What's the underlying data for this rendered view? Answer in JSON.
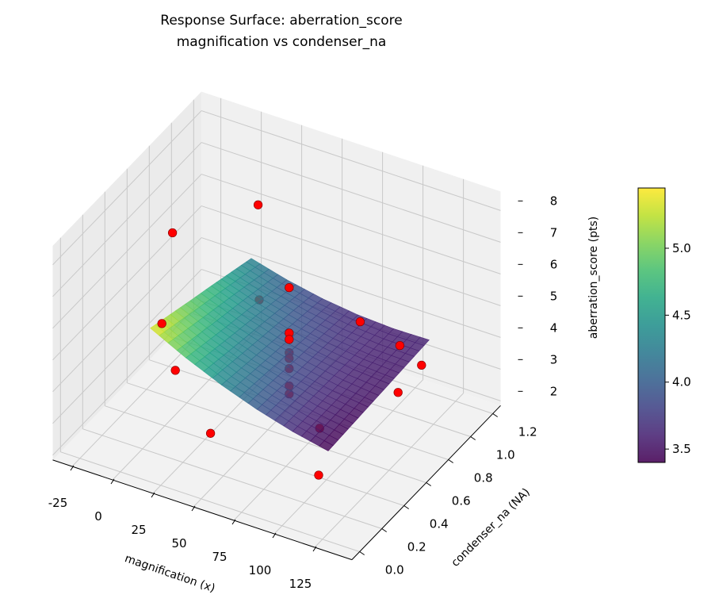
{
  "chart_data": {
    "type": "surface3d",
    "title": "Response Surface: aberration_score",
    "subtitle": "magnification vs condenser_na",
    "xlabel": "magnification (x)",
    "ylabel": "condenser_na (NA)",
    "zlabel": "aberration_score (pts)",
    "xlim": [
      -37,
      148
    ],
    "ylim": [
      -0.07,
      1.27
    ],
    "zlim": [
      1.85,
      8.6
    ],
    "xticks": [
      "-25",
      "0",
      "25",
      "50",
      "75",
      "100",
      "125"
    ],
    "yticks": [
      "0.0",
      "0.2",
      "0.4",
      "0.6",
      "0.8",
      "1.0",
      "1.2"
    ],
    "zticks": [
      "2",
      "3",
      "4",
      "5",
      "6",
      "7",
      "8"
    ],
    "grid": true,
    "colormap": "viridis",
    "colorbar": {
      "min": 3.4,
      "max": 5.45,
      "ticks": [
        "3.5",
        "4.0",
        "4.5",
        "5.0"
      ]
    },
    "scatter_color": "#ff0000",
    "surface": {
      "x": [
        0,
        22,
        44,
        66,
        88,
        110
      ],
      "y": [
        0.27,
        0.45,
        0.63,
        0.82,
        1.0,
        1.18
      ],
      "z": [
        [
          5.4,
          4.84,
          4.36,
          3.96,
          3.64,
          3.4
        ],
        [
          5.18,
          4.67,
          4.24,
          3.9,
          3.63,
          3.44
        ],
        [
          4.96,
          4.5,
          4.13,
          3.83,
          3.62,
          3.48
        ],
        [
          4.74,
          4.34,
          4.01,
          3.77,
          3.6,
          3.52
        ],
        [
          4.52,
          4.17,
          3.9,
          3.7,
          3.59,
          3.56
        ],
        [
          4.3,
          4.0,
          3.78,
          3.64,
          3.58,
          3.6
        ]
      ]
    },
    "points": [
      {
        "x": 0,
        "y": 0.47,
        "z": 7.68
      },
      {
        "x": 20,
        "y": 0.95,
        "z": 7.16
      },
      {
        "x": 55,
        "y": 0.72,
        "z": 5.98
      },
      {
        "x": 20,
        "y": 0.96,
        "z": 4.13
      },
      {
        "x": -10,
        "y": 0.52,
        "z": 4.47
      },
      {
        "x": 10,
        "y": 0.35,
        "z": 3.95
      },
      {
        "x": 90,
        "y": 0.85,
        "z": 5.03
      },
      {
        "x": 120,
        "y": 0.77,
        "z": 5.08
      },
      {
        "x": 130,
        "y": 0.82,
        "z": 4.45
      },
      {
        "x": 110,
        "y": 0.9,
        "z": 2.96
      },
      {
        "x": 40,
        "y": 0.23,
        "z": 2.91
      },
      {
        "x": 80,
        "y": 0.63,
        "z": 2.3
      },
      {
        "x": 100,
        "y": 0.33,
        "z": 2.25
      },
      {
        "x": 55,
        "y": 0.72,
        "z": 4.55
      },
      {
        "x": 55,
        "y": 0.72,
        "z": 4.35
      },
      {
        "x": 55,
        "y": 0.72,
        "z": 3.93
      },
      {
        "x": 55,
        "y": 0.72,
        "z": 3.75
      },
      {
        "x": 55,
        "y": 0.72,
        "z": 3.43
      },
      {
        "x": 55,
        "y": 0.72,
        "z": 2.88
      },
      {
        "x": 55,
        "y": 0.72,
        "z": 2.63
      }
    ]
  }
}
